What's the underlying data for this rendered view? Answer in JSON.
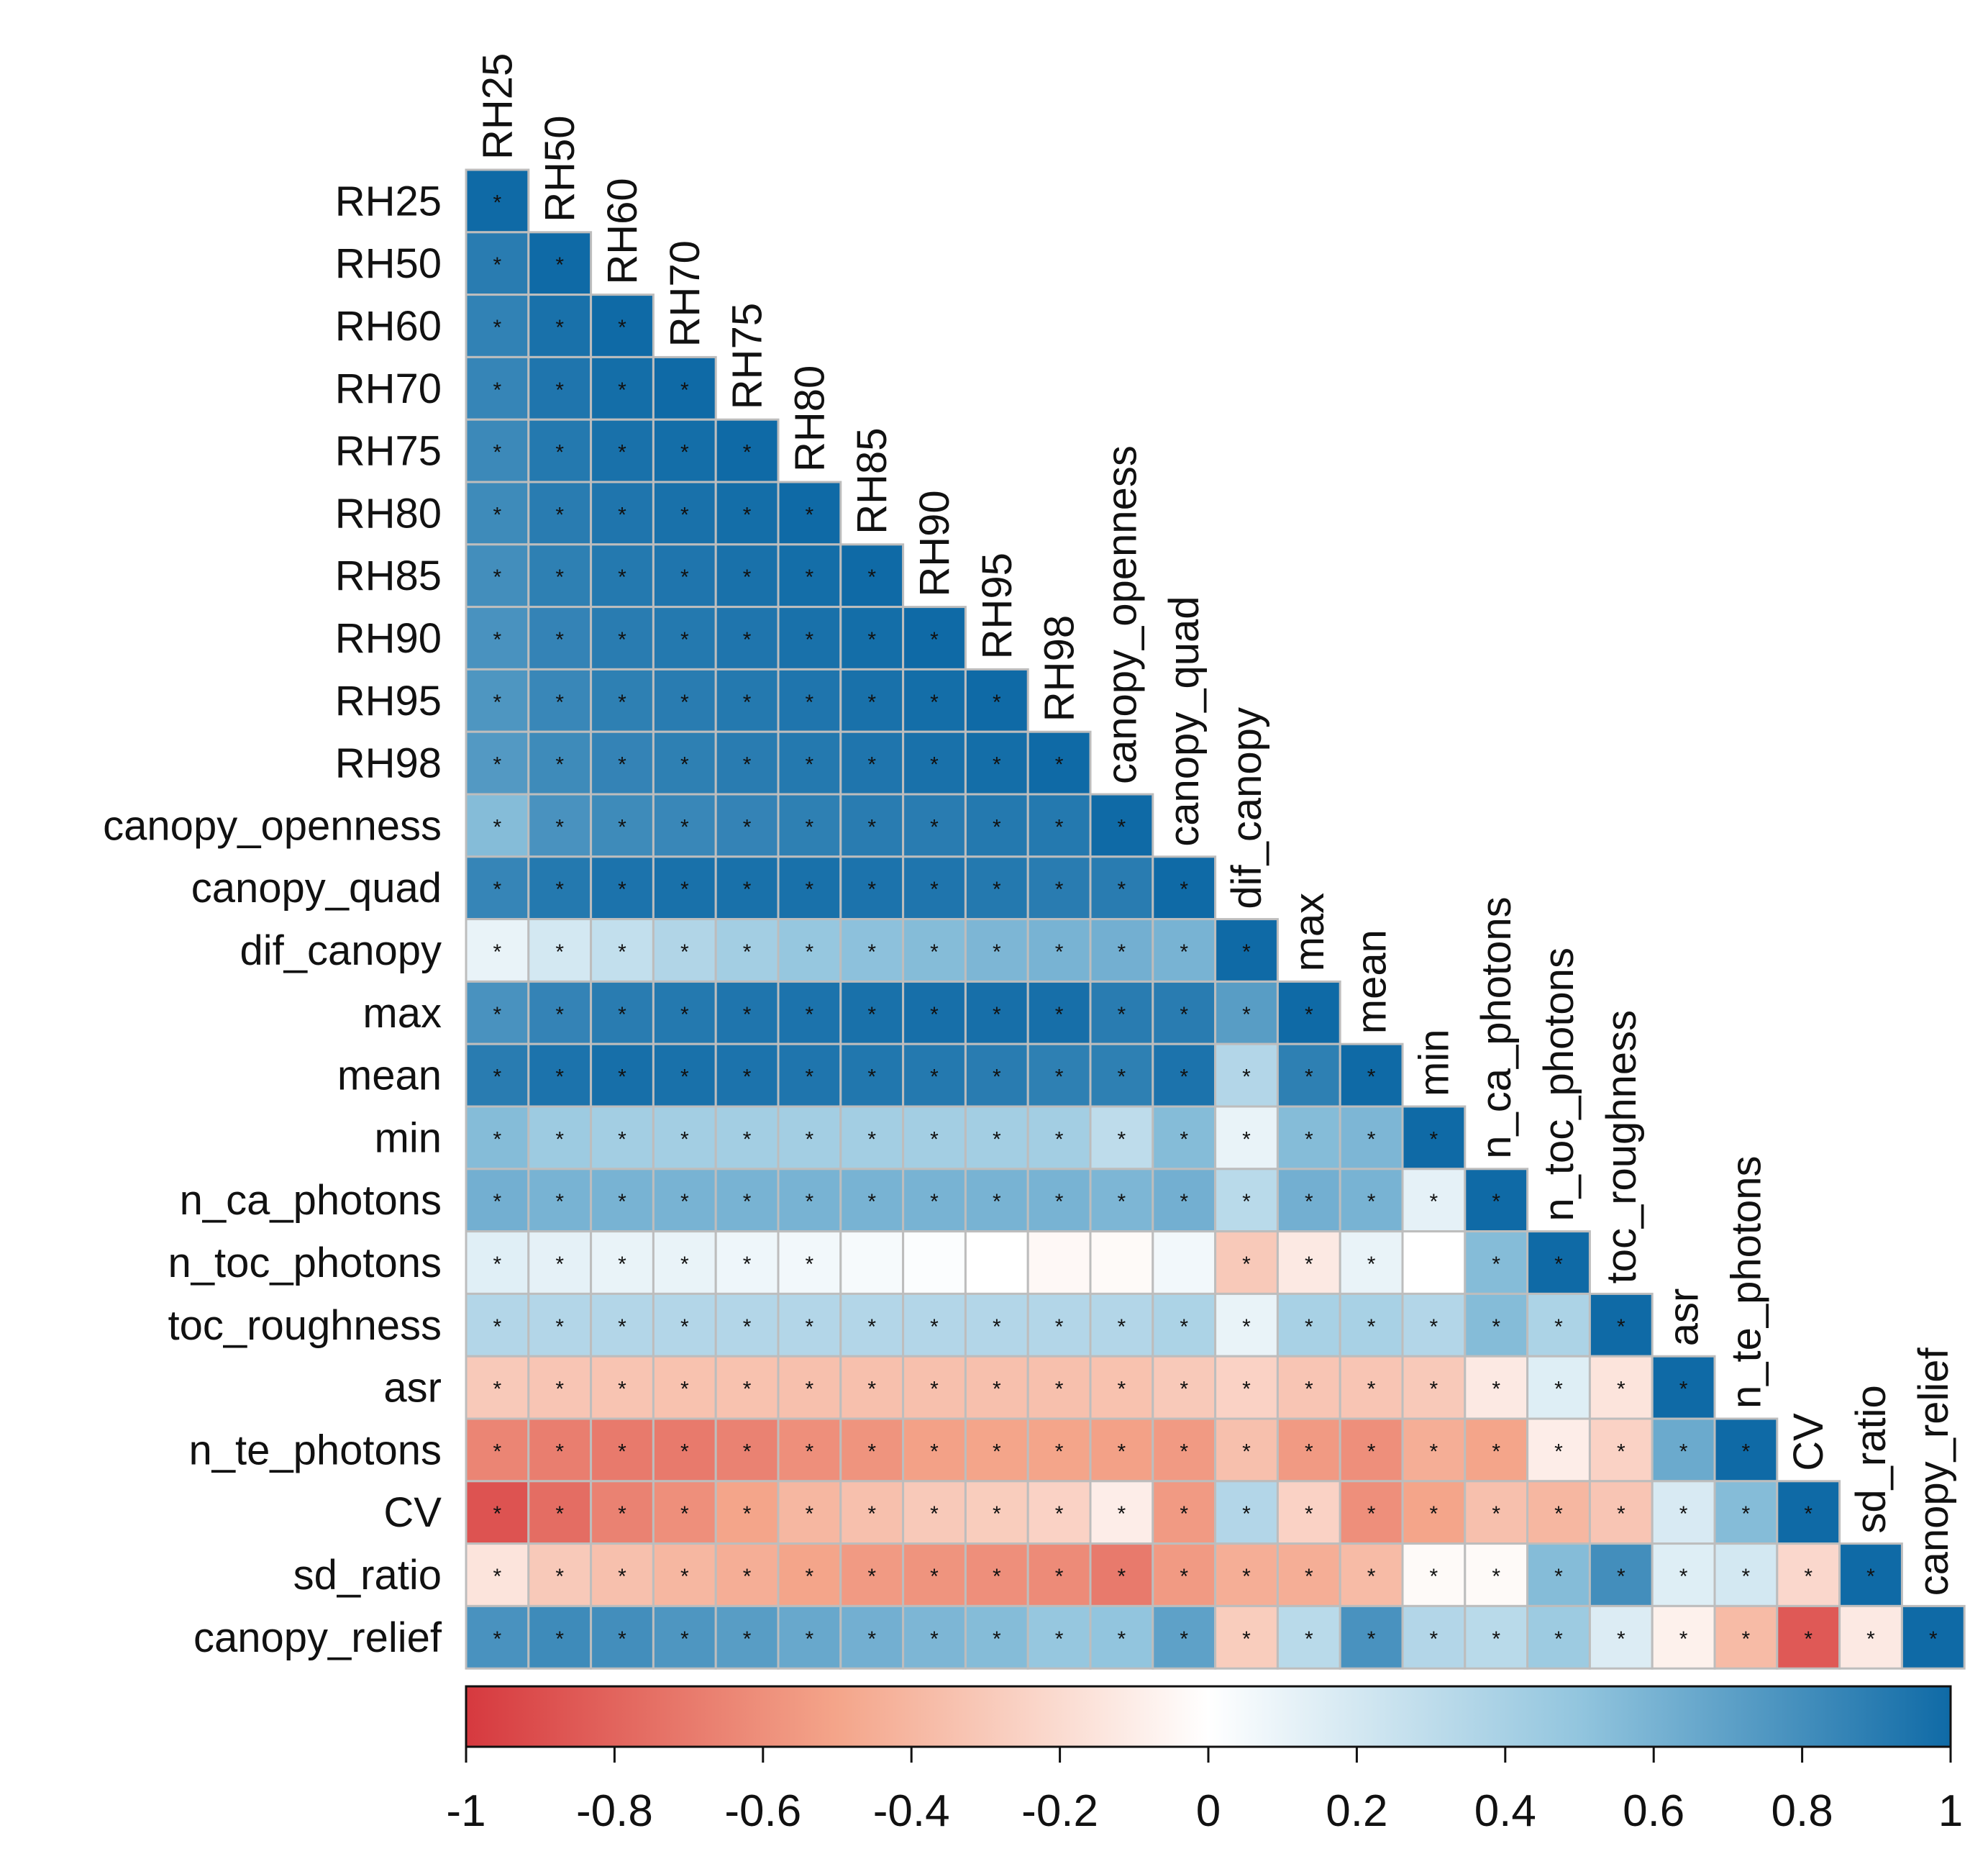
{
  "chart_data": {
    "type": "heatmap",
    "subtype": "lower-triangular correlation matrix",
    "variables": [
      "RH25",
      "RH50",
      "RH60",
      "RH70",
      "RH75",
      "RH80",
      "RH85",
      "RH90",
      "RH95",
      "RH98",
      "canopy_openness",
      "canopy_quad",
      "dif_canopy",
      "max",
      "mean",
      "min",
      "n_ca_photons",
      "n_toc_photons",
      "toc_roughness",
      "asr",
      "n_te_photons",
      "CV",
      "sd_ratio",
      "canopy_relief"
    ],
    "matrix": [
      [
        1.0
      ],
      [
        0.9,
        1.0
      ],
      [
        0.87,
        0.96,
        1.0
      ],
      [
        0.85,
        0.94,
        0.98,
        1.0
      ],
      [
        0.83,
        0.92,
        0.96,
        0.98,
        1.0
      ],
      [
        0.82,
        0.9,
        0.94,
        0.96,
        0.98,
        1.0
      ],
      [
        0.8,
        0.88,
        0.92,
        0.94,
        0.96,
        0.98,
        1.0
      ],
      [
        0.78,
        0.86,
        0.9,
        0.92,
        0.94,
        0.96,
        0.98,
        1.0
      ],
      [
        0.76,
        0.84,
        0.88,
        0.9,
        0.92,
        0.94,
        0.96,
        0.98,
        1.0
      ],
      [
        0.74,
        0.82,
        0.86,
        0.88,
        0.9,
        0.92,
        0.94,
        0.96,
        0.98,
        1.0
      ],
      [
        0.55,
        0.78,
        0.82,
        0.84,
        0.86,
        0.88,
        0.9,
        0.9,
        0.92,
        0.92,
        1.0
      ],
      [
        0.85,
        0.92,
        0.95,
        0.96,
        0.96,
        0.96,
        0.95,
        0.94,
        0.92,
        0.9,
        0.9,
        1.0
      ],
      [
        0.1,
        0.2,
        0.28,
        0.36,
        0.42,
        0.48,
        0.52,
        0.55,
        0.58,
        0.6,
        0.62,
        0.6,
        1.0
      ],
      [
        0.78,
        0.86,
        0.9,
        0.92,
        0.94,
        0.95,
        0.96,
        0.97,
        0.97,
        0.97,
        0.9,
        0.9,
        0.72,
        1.0
      ],
      [
        0.9,
        0.95,
        0.97,
        0.96,
        0.95,
        0.94,
        0.93,
        0.92,
        0.9,
        0.88,
        0.88,
        0.95,
        0.35,
        0.88,
        1.0
      ],
      [
        0.55,
        0.45,
        0.42,
        0.42,
        0.42,
        0.42,
        0.42,
        0.42,
        0.42,
        0.42,
        0.3,
        0.55,
        0.1,
        0.55,
        0.58,
        1.0
      ],
      [
        0.62,
        0.6,
        0.6,
        0.6,
        0.6,
        0.6,
        0.6,
        0.6,
        0.6,
        0.6,
        0.58,
        0.62,
        0.32,
        0.62,
        0.6,
        0.12,
        1.0
      ],
      [
        0.14,
        0.12,
        0.1,
        0.1,
        0.08,
        0.06,
        0.04,
        0.02,
        0.0,
        -0.04,
        -0.03,
        0.06,
        -0.3,
        -0.12,
        0.1,
        0.0,
        0.55,
        1.0
      ],
      [
        0.35,
        0.35,
        0.35,
        0.35,
        0.35,
        0.35,
        0.35,
        0.35,
        0.35,
        0.35,
        0.35,
        0.38,
        0.1,
        0.4,
        0.4,
        0.35,
        0.55,
        0.38,
        1.0
      ],
      [
        -0.3,
        -0.32,
        -0.33,
        -0.34,
        -0.34,
        -0.35,
        -0.35,
        -0.35,
        -0.35,
        -0.35,
        -0.34,
        -0.3,
        -0.25,
        -0.32,
        -0.32,
        -0.3,
        -0.12,
        0.15,
        -0.15,
        1.0
      ],
      [
        -0.65,
        -0.68,
        -0.7,
        -0.7,
        -0.66,
        -0.6,
        -0.58,
        -0.52,
        -0.5,
        -0.5,
        -0.52,
        -0.55,
        -0.35,
        -0.55,
        -0.6,
        -0.45,
        -0.5,
        -0.1,
        -0.25,
        0.65,
        1.0
      ],
      [
        -0.88,
        -0.76,
        -0.66,
        -0.6,
        -0.5,
        -0.4,
        -0.35,
        -0.3,
        -0.28,
        -0.25,
        -0.1,
        -0.55,
        0.35,
        -0.25,
        -0.6,
        -0.5,
        -0.35,
        -0.4,
        -0.32,
        0.18,
        0.55,
        1.0
      ],
      [
        -0.15,
        -0.3,
        -0.35,
        -0.4,
        -0.45,
        -0.5,
        -0.55,
        -0.58,
        -0.6,
        -0.62,
        -0.7,
        -0.55,
        -0.45,
        -0.45,
        -0.38,
        -0.03,
        -0.03,
        0.55,
        0.8,
        0.15,
        0.2,
        -0.22,
        1.0
      ],
      [
        0.78,
        0.82,
        0.8,
        0.76,
        0.72,
        0.66,
        0.62,
        0.58,
        0.55,
        0.48,
        0.5,
        0.7,
        -0.28,
        0.32,
        0.78,
        0.35,
        0.32,
        0.45,
        0.16,
        -0.08,
        -0.38,
        -0.85,
        -0.12,
        1.0
      ]
    ],
    "significance_marker": "*",
    "nonsignificant_cells": [
      [
        17,
        6
      ],
      [
        17,
        7
      ],
      [
        17,
        8
      ],
      [
        17,
        9
      ],
      [
        17,
        10
      ],
      [
        17,
        11
      ],
      [
        17,
        15
      ]
    ],
    "color_scale": {
      "min": -1,
      "max": 1,
      "low_color": "#d6393f",
      "mid_low_color": "#f4a58a",
      "mid_color": "#ffffff",
      "mid_high_color": "#92c5de",
      "high_color": "#0f6aa6"
    },
    "colorbar_ticks": [
      "-1",
      "-0.8",
      "-0.6",
      "-0.4",
      "-0.2",
      "0",
      "0.2",
      "0.4",
      "0.6",
      "0.8",
      "1"
    ],
    "colorbar_placement": "bottom"
  }
}
